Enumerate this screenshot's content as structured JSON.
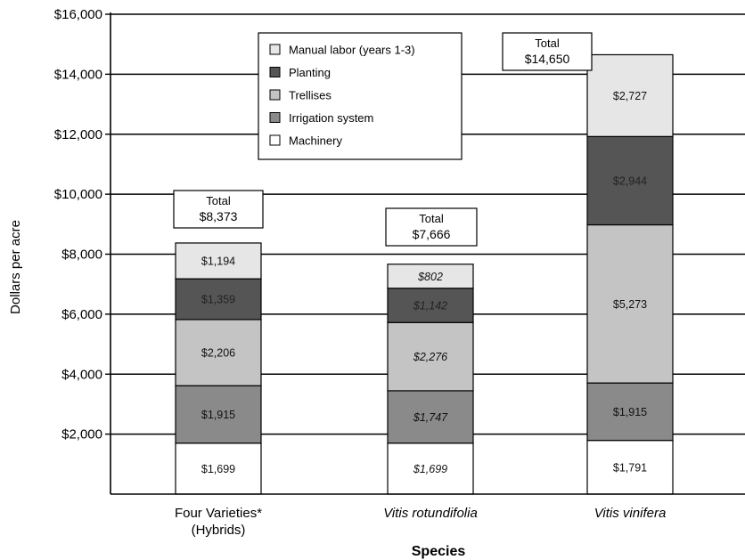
{
  "chart_data": {
    "type": "bar",
    "stacked": true,
    "categories": [
      {
        "lines": [
          "Four Varieties*",
          "(Hybrids)"
        ],
        "italic": false
      },
      {
        "lines": [
          "Vitis rotundifolia"
        ],
        "italic": true
      },
      {
        "lines": [
          "Vitis vinifera"
        ],
        "italic": true
      }
    ],
    "series": [
      {
        "name": "Machinery",
        "color": "#ffffff",
        "values": [
          1699,
          1699,
          1791
        ],
        "labels": [
          "$1,699",
          "$1,699",
          "$1,791"
        ]
      },
      {
        "name": "Irrigation system",
        "color": "#8a8a8a",
        "values": [
          1915,
          1747,
          1915
        ],
        "labels": [
          "$1,915",
          "$1,747",
          "$1,915"
        ]
      },
      {
        "name": "Trellises",
        "color": "#c4c4c4",
        "values": [
          2206,
          2276,
          5273
        ],
        "labels": [
          "$2,206",
          "$2,276",
          "$5,273"
        ]
      },
      {
        "name": "Planting",
        "color": "#555555",
        "values": [
          1359,
          1142,
          2944
        ],
        "labels": [
          "$1,359",
          "$1,142",
          "$2,944"
        ]
      },
      {
        "name": "Manual labor (years 1-3)",
        "color": "#e6e6e6",
        "values": [
          1194,
          802,
          2727
        ],
        "labels": [
          "$1,194",
          "$802",
          "$2,727"
        ]
      }
    ],
    "italic_labels_category": 1,
    "totals": [
      {
        "label": "Total",
        "value": "$8,373"
      },
      {
        "label": "Total",
        "value": "$7,666"
      },
      {
        "label": "Total",
        "value": "$14,650"
      }
    ],
    "xlabel": "Species",
    "ylabel": "Dollars per acre",
    "ylim": [
      0,
      16000
    ],
    "yticks": [
      2000,
      4000,
      6000,
      8000,
      10000,
      12000,
      14000,
      16000
    ],
    "ytick_labels": [
      "$2,000",
      "$4,000",
      "$6,000",
      "$8,000",
      "$10,000",
      "$12,000",
      "$14,000",
      "$16,000"
    ],
    "grid": true,
    "legend_position": "top-center",
    "legend_order": [
      "Manual labor (years 1-3)",
      "Planting",
      "Trellises",
      "Irrigation system",
      "Machinery"
    ]
  }
}
